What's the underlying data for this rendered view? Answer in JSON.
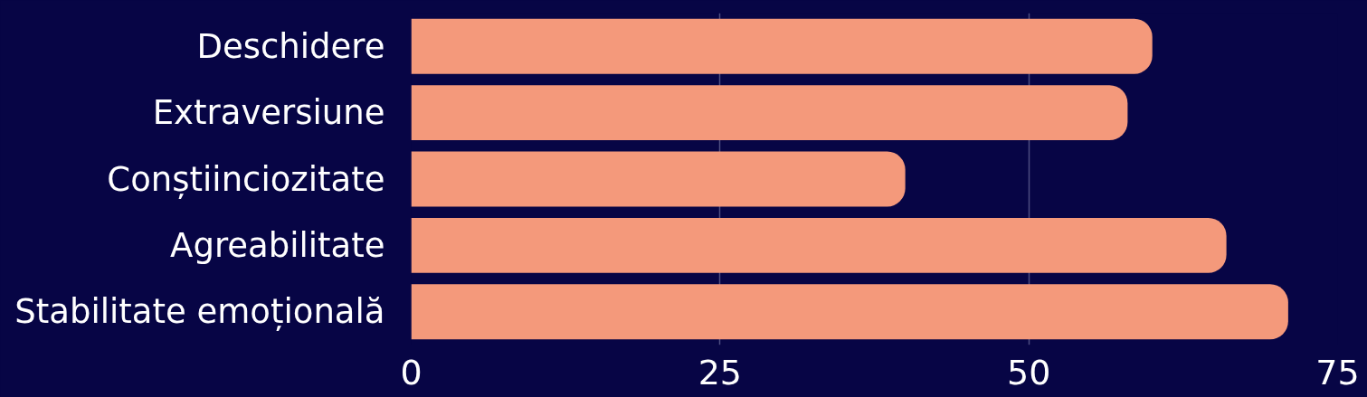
{
  "chart_data": {
    "type": "bar",
    "orientation": "horizontal",
    "categories": [
      "Deschidere",
      "Extraversiune",
      "Conștiinciozitate",
      "Agreabilitate",
      "Stabilitate emoțională"
    ],
    "values": [
      60,
      58,
      40,
      66,
      71
    ],
    "color": "#f4997b",
    "xlim": [
      0,
      75
    ],
    "xticks": [
      0,
      25,
      50,
      75
    ],
    "grid": "x"
  }
}
